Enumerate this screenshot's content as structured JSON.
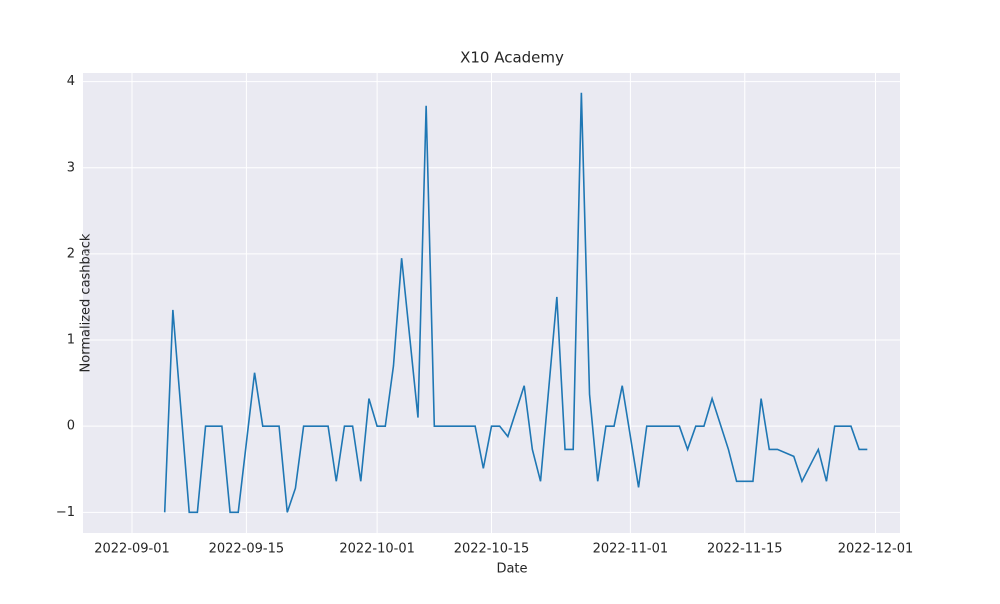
{
  "chart_data": {
    "type": "line",
    "title": "X10 Academy",
    "x_label": "Date",
    "y_label": "Normalized cashback",
    "grid": true,
    "xlim": [
      "2022-08-26",
      "2022-12-04"
    ],
    "xticks": [
      "2022-09-01",
      "2022-09-15",
      "2022-10-01",
      "2022-10-15",
      "2022-11-01",
      "2022-11-15",
      "2022-12-01"
    ],
    "ylim": [
      -1.24,
      4.1
    ],
    "yticks": [
      {
        "value": -1,
        "label": "−1"
      },
      0,
      1,
      2,
      3,
      4
    ],
    "x": [
      "2022-09-05",
      "2022-09-06",
      "2022-09-08",
      "2022-09-09",
      "2022-09-10",
      "2022-09-11",
      "2022-09-12",
      "2022-09-13",
      "2022-09-14",
      "2022-09-16",
      "2022-09-17",
      "2022-09-18",
      "2022-09-19",
      "2022-09-20",
      "2022-09-21",
      "2022-09-22",
      "2022-09-23",
      "2022-09-24",
      "2022-09-25",
      "2022-09-26",
      "2022-09-27",
      "2022-09-28",
      "2022-09-29",
      "2022-09-30",
      "2022-10-01",
      "2022-10-02",
      "2022-10-03",
      "2022-10-04",
      "2022-10-06",
      "2022-10-07",
      "2022-10-08",
      "2022-10-09",
      "2022-10-10",
      "2022-10-11",
      "2022-10-12",
      "2022-10-13",
      "2022-10-14",
      "2022-10-15",
      "2022-10-16",
      "2022-10-17",
      "2022-10-19",
      "2022-10-20",
      "2022-10-21",
      "2022-10-23",
      "2022-10-24",
      "2022-10-25",
      "2022-10-26",
      "2022-10-27",
      "2022-10-28",
      "2022-10-29",
      "2022-10-30",
      "2022-10-31",
      "2022-11-02",
      "2022-11-03",
      "2022-11-04",
      "2022-11-05",
      "2022-11-06",
      "2022-11-07",
      "2022-11-08",
      "2022-11-09",
      "2022-11-10",
      "2022-11-11",
      "2022-11-13",
      "2022-11-14",
      "2022-11-15",
      "2022-11-16",
      "2022-11-17",
      "2022-11-18",
      "2022-11-19",
      "2022-11-21",
      "2022-11-22",
      "2022-11-24",
      "2022-11-25",
      "2022-11-26",
      "2022-11-27",
      "2022-11-28",
      "2022-11-29",
      "2022-11-30"
    ],
    "series": [
      {
        "name": "X10 Academy",
        "color": "#1f77b4",
        "values": [
          -1,
          1.35,
          -1,
          -1,
          0,
          0,
          0,
          -1,
          -1,
          0.62,
          0,
          0,
          0,
          -1,
          -0.72,
          0,
          0,
          0,
          0,
          -0.64,
          0,
          0,
          -0.64,
          0.32,
          0,
          0,
          0.7,
          1.95,
          0.1,
          3.72,
          0,
          0,
          0,
          0,
          0,
          0,
          -0.49,
          0,
          0,
          -0.12,
          0.47,
          -0.27,
          -0.64,
          1.5,
          -0.27,
          -0.27,
          3.87,
          0.37,
          -0.64,
          0,
          0,
          0.47,
          -0.71,
          0,
          0,
          0,
          0,
          0,
          -0.27,
          0,
          0,
          0.32,
          -0.27,
          -0.64,
          -0.64,
          -0.64,
          0.32,
          -0.27,
          -0.27,
          -0.35,
          -0.64,
          -0.27,
          -0.64,
          0,
          0,
          0,
          -0.27,
          -0.27
        ]
      }
    ]
  }
}
